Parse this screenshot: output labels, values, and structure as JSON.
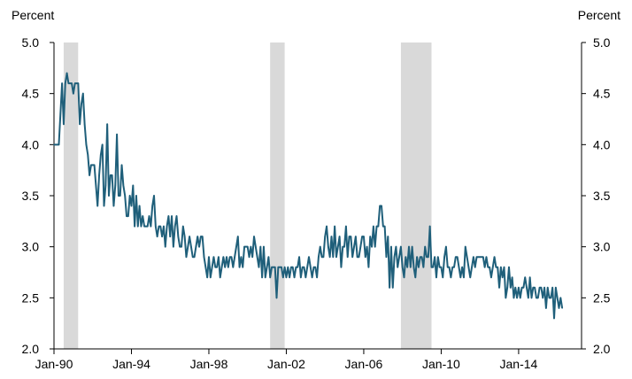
{
  "chart_data": {
    "type": "line",
    "title": "",
    "xlabel": "",
    "ylabel_left": "Percent",
    "ylabel_right": "Percent",
    "ylim": [
      2.0,
      5.0
    ],
    "y_ticks": [
      "2.0",
      "2.5",
      "3.0",
      "3.5",
      "4.0",
      "4.5",
      "5.0"
    ],
    "x_range": [
      "1990-01",
      "2017-04"
    ],
    "x_ticks": [
      "Jan-90",
      "Jan-94",
      "Jan-98",
      "Jan-02",
      "Jan-06",
      "Jan-10",
      "Jan-14"
    ],
    "grid": false,
    "legend": "none",
    "line_color": "#1f5f7a",
    "recession_color": "#d9d9d9",
    "recessions": [
      {
        "start": "1990-07",
        "end": "1991-03"
      },
      {
        "start": "2001-03",
        "end": "2001-11"
      },
      {
        "start": "2007-12",
        "end": "2009-06"
      }
    ],
    "series": [
      {
        "start": "1990-01",
        "frequency": "monthly",
        "values": [
          4.0,
          4.0,
          4.0,
          4.0,
          4.3,
          4.6,
          4.2,
          4.6,
          4.7,
          4.6,
          4.6,
          4.6,
          4.5,
          4.6,
          4.6,
          4.6,
          4.2,
          4.4,
          4.5,
          4.2,
          4.0,
          3.9,
          3.7,
          3.8,
          3.8,
          3.8,
          3.6,
          3.4,
          3.7,
          3.9,
          4.0,
          3.4,
          3.6,
          4.2,
          3.5,
          3.7,
          3.7,
          3.4,
          3.6,
          4.1,
          3.5,
          3.5,
          3.8,
          3.6,
          3.5,
          3.3,
          3.3,
          3.5,
          3.4,
          3.6,
          3.2,
          3.5,
          3.2,
          3.4,
          3.2,
          3.3,
          3.2,
          3.2,
          3.2,
          3.3,
          3.2,
          3.4,
          3.5,
          3.2,
          3.1,
          3.2,
          3.2,
          3.1,
          3.2,
          3.0,
          3.2,
          3.3,
          3.1,
          3.3,
          3.0,
          3.2,
          3.3,
          3.1,
          3.0,
          3.0,
          3.2,
          3.1,
          2.9,
          3.0,
          3.1,
          3.0,
          2.9,
          2.9,
          3.0,
          3.1,
          3.0,
          3.1,
          3.1,
          2.9,
          2.8,
          2.7,
          2.9,
          2.7,
          2.8,
          2.9,
          2.8,
          2.8,
          2.9,
          2.7,
          2.8,
          2.9,
          2.8,
          2.9,
          2.8,
          2.9,
          2.9,
          2.8,
          2.9,
          3.0,
          3.1,
          2.8,
          2.9,
          2.8,
          3.0,
          3.0,
          3.0,
          2.9,
          3.0,
          2.9,
          3.1,
          3.0,
          2.9,
          2.8,
          3.0,
          2.7,
          3.0,
          2.7,
          2.8,
          2.9,
          2.7,
          2.8,
          2.8,
          2.8,
          2.5,
          2.8,
          2.8,
          2.8,
          2.7,
          2.8,
          2.7,
          2.8,
          2.7,
          2.8,
          2.8,
          2.7,
          2.8,
          2.8,
          2.9,
          2.7,
          2.8,
          2.8,
          2.7,
          2.8,
          2.9,
          2.8,
          2.7,
          2.8,
          2.8,
          2.7,
          2.9,
          3.0,
          2.9,
          2.9,
          3.1,
          3.2,
          3.0,
          2.9,
          3.1,
          2.9,
          3.2,
          2.9,
          3.0,
          3.1,
          2.8,
          3.0,
          3.0,
          3.2,
          2.9,
          3.1,
          3.1,
          2.9,
          3.0,
          3.1,
          2.9,
          2.9,
          3.0,
          3.1,
          3.1,
          2.9,
          3.0,
          2.8,
          3.1,
          3.0,
          3.2,
          3.0,
          3.2,
          3.2,
          3.4,
          3.4,
          3.2,
          3.2,
          2.9,
          3.1,
          2.6,
          3.0,
          2.6,
          2.9,
          3.0,
          2.8,
          2.9,
          3.0,
          2.8,
          2.7,
          2.9,
          2.8,
          3.0,
          2.8,
          3.0,
          2.8,
          2.7,
          2.9,
          2.8,
          2.9,
          2.9,
          2.8,
          3.0,
          2.9,
          2.9,
          3.2,
          2.8,
          2.8,
          2.9,
          2.7,
          2.9,
          2.8,
          2.8,
          2.7,
          2.9,
          3.0,
          2.8,
          2.8,
          2.7,
          2.8,
          2.8,
          2.9,
          2.9,
          2.8,
          2.7,
          2.8,
          2.7,
          3.0,
          2.9,
          2.8,
          2.7,
          2.8,
          2.9,
          2.8,
          2.9,
          2.9,
          2.9,
          2.9,
          2.9,
          2.8,
          2.9,
          2.8,
          2.8,
          2.7,
          2.8,
          2.9,
          2.8,
          2.8,
          2.6,
          2.8,
          2.7,
          2.8,
          2.5,
          2.6,
          2.8,
          2.6,
          2.7,
          2.5,
          2.6,
          2.5,
          2.6,
          2.5,
          2.6,
          2.6,
          2.7,
          2.6,
          2.5,
          2.7,
          2.5,
          2.6,
          2.6,
          2.5,
          2.5,
          2.6,
          2.6,
          2.5,
          2.6,
          2.4,
          2.6,
          2.5,
          2.5,
          2.6,
          2.3,
          2.6,
          2.5,
          2.4,
          2.5,
          2.4
        ]
      }
    ]
  }
}
